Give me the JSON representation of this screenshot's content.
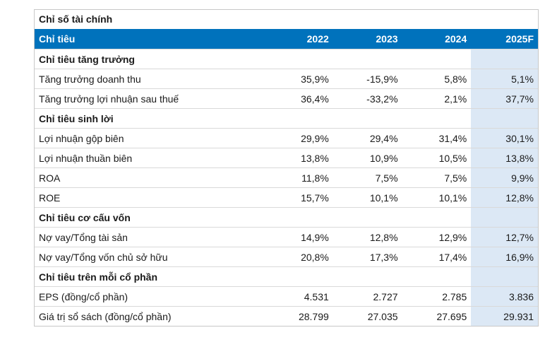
{
  "title": "Chỉ số tài chính",
  "header": {
    "label": "Chỉ tiêu",
    "years": [
      "2022",
      "2023",
      "2024",
      "2025F"
    ]
  },
  "sections": [
    {
      "name": "Chỉ tiêu tăng trưởng",
      "rows": [
        {
          "label": "Tăng trưởng doanh thu",
          "values": [
            "35,9%",
            "-15,9%",
            "5,8%",
            "5,1%"
          ]
        },
        {
          "label": "Tăng trưởng lợi nhuận sau thuế",
          "values": [
            "36,4%",
            "-33,2%",
            "2,1%",
            "37,7%"
          ]
        }
      ]
    },
    {
      "name": "Chỉ tiêu sinh lời",
      "rows": [
        {
          "label": "Lợi nhuận gộp biên",
          "values": [
            "29,9%",
            "29,4%",
            "31,4%",
            "30,1%"
          ]
        },
        {
          "label": "Lợi nhuận thuần biên",
          "values": [
            "13,8%",
            "10,9%",
            "10,5%",
            "13,8%"
          ]
        },
        {
          "label": "ROA",
          "values": [
            "11,8%",
            "7,5%",
            "7,5%",
            "9,9%"
          ]
        },
        {
          "label": "ROE",
          "values": [
            "15,7%",
            "10,1%",
            "10,1%",
            "12,8%"
          ]
        }
      ]
    },
    {
      "name": "Chỉ tiêu cơ cấu vốn",
      "rows": [
        {
          "label": "Nợ vay/Tổng tài sản",
          "values": [
            "14,9%",
            "12,8%",
            "12,9%",
            "12,7%"
          ]
        },
        {
          "label": "Nợ vay/Tổng vốn chủ sở hữu",
          "values": [
            "20,8%",
            "17,3%",
            "17,4%",
            "16,9%"
          ]
        }
      ]
    },
    {
      "name": "Chỉ tiêu trên mỗi cổ phần",
      "rows": [
        {
          "label": "EPS (đồng/cổ phần)",
          "values": [
            "4.531",
            "2.727",
            "2.785",
            "3.836"
          ]
        },
        {
          "label": "Giá trị sổ sách (đồng/cổ phần)",
          "values": [
            "28.799",
            "27.035",
            "27.695",
            "29.931"
          ]
        }
      ]
    }
  ],
  "colors": {
    "header_bg": "#0072bc",
    "forecast_bg": "#dce8f5"
  }
}
